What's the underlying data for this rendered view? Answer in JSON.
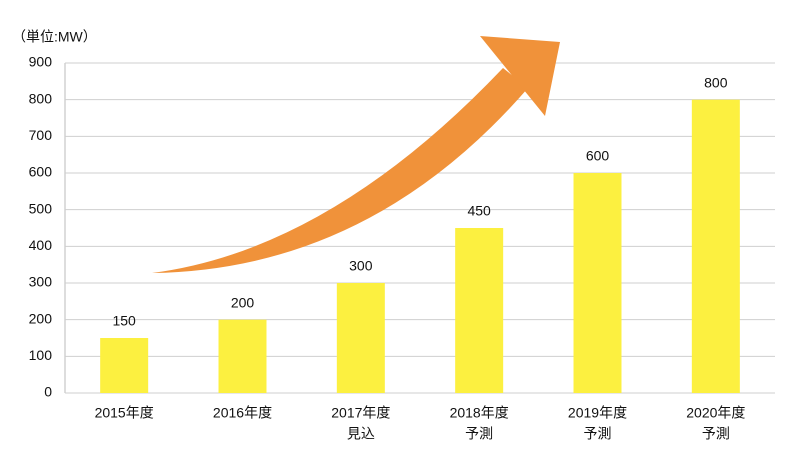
{
  "chart_data": {
    "type": "bar",
    "y_label": "（単位:MW）",
    "categories": [
      [
        "2015年度"
      ],
      [
        "2016年度"
      ],
      [
        "2017年度",
        "見込"
      ],
      [
        "2018年度",
        "予測"
      ],
      [
        "2019年度",
        "予測"
      ],
      [
        "2020年度",
        "予測"
      ]
    ],
    "values": [
      150,
      200,
      300,
      450,
      600,
      800
    ],
    "color": "#fcf040",
    "ylim": [
      0,
      900
    ],
    "yticks": [
      0,
      100,
      200,
      300,
      400,
      500,
      600,
      700,
      800,
      900
    ],
    "grid": true
  }
}
